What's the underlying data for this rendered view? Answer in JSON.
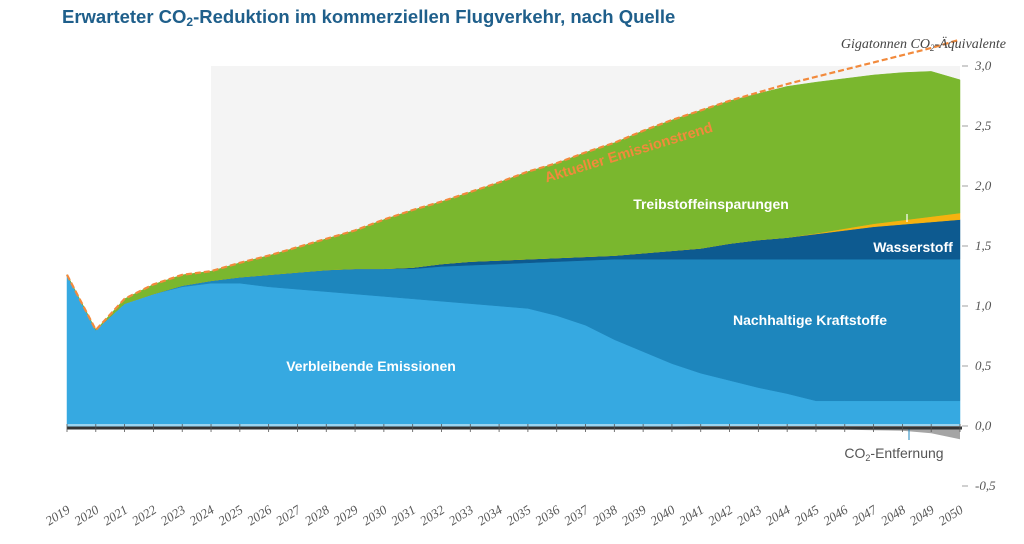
{
  "title_parts": {
    "pre": "Erwarteter CO",
    "sub": "2",
    "post": "-Reduktion im kommerziellen Flugverkehr, nach Quelle"
  },
  "chart_data": {
    "type": "area",
    "title": "Erwarteter CO2-Reduktion im kommerziellen Flugverkehr, nach Quelle",
    "ylabel": "Gigatonnen CO2-Äquivalente",
    "ylabel_parts": {
      "pre": "Gigatonnen CO",
      "sub": "2",
      "post": "-Äquivalente"
    },
    "ylim": [
      -0.5,
      3.0
    ],
    "y_ticks": [
      "3,0",
      "2,5",
      "2,0",
      "1,5",
      "1,0",
      "0,5",
      "0,0",
      "-0,5"
    ],
    "y_tick_values": [
      3.0,
      2.5,
      2.0,
      1.5,
      1.0,
      0.5,
      0.0,
      -0.5
    ],
    "y_axis_position": "right",
    "x": [
      2019,
      2020,
      2021,
      2022,
      2023,
      2024,
      2025,
      2026,
      2027,
      2028,
      2029,
      2030,
      2031,
      2032,
      2033,
      2034,
      2035,
      2036,
      2037,
      2038,
      2039,
      2040,
      2041,
      2042,
      2043,
      2044,
      2045,
      2046,
      2047,
      2048,
      2049,
      2050
    ],
    "x_tick_labels": [
      "2019",
      "2020",
      "2021",
      "2022",
      "2023",
      "2024",
      "2025",
      "2026",
      "2027",
      "2028",
      "2029",
      "2030",
      "2031",
      "2032",
      "2033",
      "2034",
      "2035",
      "2036",
      "2037",
      "2038",
      "2039",
      "2040",
      "2041",
      "2042",
      "2043",
      "2044",
      "2045",
      "2046",
      "2047",
      "2048",
      "2049",
      "2050"
    ],
    "forecast_shading_from": 2024,
    "grid": false,
    "legend": "inline labels",
    "series": [
      {
        "name": "Verbleibende Emissionen",
        "color": "#36a9e1",
        "values": [
          1.26,
          0.8,
          1.02,
          1.1,
          1.16,
          1.19,
          1.19,
          1.16,
          1.14,
          1.12,
          1.1,
          1.08,
          1.06,
          1.04,
          1.02,
          1.0,
          0.98,
          0.92,
          0.84,
          0.72,
          0.62,
          0.52,
          0.44,
          0.38,
          0.32,
          0.27,
          0.21,
          0.21,
          0.21,
          0.21,
          0.21,
          0.21
        ]
      },
      {
        "name": "Nachhaltige Kraftstoffe",
        "color": "#1d86bd",
        "values": [
          0.0,
          0.0,
          0.0,
          0.0,
          0.01,
          0.02,
          0.05,
          0.1,
          0.14,
          0.18,
          0.21,
          0.23,
          0.25,
          0.29,
          0.32,
          0.35,
          0.38,
          0.45,
          0.54,
          0.67,
          0.77,
          0.87,
          0.95,
          1.01,
          1.07,
          1.12,
          1.18,
          1.18,
          1.18,
          1.18,
          1.18,
          1.18
        ]
      },
      {
        "name": "Wasserstoff",
        "color": "#0d5a90",
        "values": [
          0.0,
          0.0,
          0.0,
          0.0,
          0.0,
          0.0,
          0.0,
          0.0,
          0.0,
          0.0,
          0.0,
          0.0,
          0.01,
          0.02,
          0.03,
          0.03,
          0.03,
          0.03,
          0.03,
          0.03,
          0.05,
          0.07,
          0.09,
          0.13,
          0.16,
          0.18,
          0.21,
          0.24,
          0.27,
          0.29,
          0.31,
          0.33
        ]
      },
      {
        "name": "Treibstoffeinsparungen",
        "color": "#7ab72e",
        "values": [
          0.0,
          0.0,
          0.04,
          0.08,
          0.09,
          0.08,
          0.12,
          0.16,
          0.21,
          0.26,
          0.32,
          0.41,
          0.48,
          0.52,
          0.58,
          0.65,
          0.73,
          0.79,
          0.87,
          0.94,
          1.02,
          1.09,
          1.15,
          1.19,
          1.22,
          1.26,
          1.26,
          1.25,
          1.24,
          1.23,
          1.21,
          1.11
        ]
      },
      {
        "name": "CO2-Entfernung",
        "color": "#a5a5a5",
        "values": [
          0,
          0,
          0,
          0,
          0,
          0,
          0,
          0,
          0,
          0,
          0,
          0,
          0,
          0,
          0,
          0,
          0,
          0,
          0,
          0,
          0,
          0,
          -0.005,
          -0.01,
          -0.015,
          -0.02,
          -0.025,
          -0.03,
          -0.035,
          -0.04,
          -0.06,
          -0.11
        ]
      }
    ],
    "extra_layers": {
      "orange_band": {
        "color": "#f6b20f",
        "start_year": 2044,
        "values": [
          0,
          0,
          0,
          0,
          0,
          0,
          0,
          0,
          0,
          0,
          0,
          0,
          0,
          0,
          0,
          0,
          0,
          0,
          0,
          0,
          0,
          0,
          0,
          0,
          0,
          0,
          0.005,
          0.015,
          0.025,
          0.035,
          0.045,
          0.055
        ]
      }
    },
    "trend": {
      "name": "Aktueller Emissionstrend",
      "color": "#f28a3c",
      "values": [
        1.26,
        0.8,
        1.06,
        1.18,
        1.26,
        1.29,
        1.36,
        1.42,
        1.49,
        1.56,
        1.63,
        1.72,
        1.8,
        1.87,
        1.95,
        2.03,
        2.12,
        2.19,
        2.28,
        2.36,
        2.46,
        2.55,
        2.63,
        2.71,
        2.78,
        2.85,
        2.91,
        2.97,
        3.03,
        3.09,
        3.15,
        3.22
      ]
    },
    "annotations": {
      "trend_label": "Aktueller Emissionstrend",
      "treibstoff_label": "Treibstoffeinsparungen",
      "wasserstoff_label": "Wasserstoff",
      "nachhaltige_label": "Nachhaltige Kraftstoffe",
      "verbleibende_label": "Verbleibende Emissionen",
      "removal_label_parts": {
        "pre": "CO",
        "sub": "2",
        "post": "-Entfernung"
      }
    }
  }
}
